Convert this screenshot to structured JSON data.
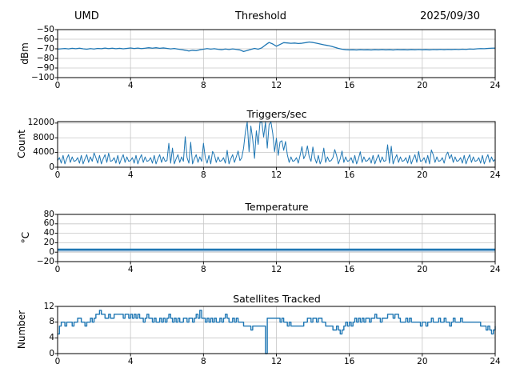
{
  "figure": {
    "background": "#ffffff",
    "accent_color": "#1f77b4",
    "grid_color": "#c6c6c6"
  },
  "header": {
    "station": "UMD",
    "date": "2025/09/30"
  },
  "chart_data": [
    {
      "type": "line",
      "title": "Threshold",
      "title_left": "UMD",
      "title_right": "2025/09/30",
      "ylabel": "dBm",
      "xlabel": "",
      "xlim": [
        0,
        24
      ],
      "ylim": [
        -100,
        -50
      ],
      "grid": true,
      "legend": "none",
      "xtick_values": [
        0,
        4,
        8,
        12,
        16,
        20,
        24
      ],
      "xtick_labels": [
        "0",
        "4",
        "8",
        "12",
        "16",
        "20",
        "24"
      ],
      "ytick_values": [
        -50,
        -60,
        -70,
        -80,
        -90,
        -100
      ],
      "ytick_labels": [
        "−50",
        "−60",
        "−70",
        "−80",
        "−90",
        "−100"
      ],
      "series": [
        {
          "name": "threshold_dbm",
          "color": "#1f77b4",
          "line_width": 1.3,
          "step": false,
          "x_start": 0,
          "x_step": 0.2,
          "values": [
            -70.3,
            -70.0,
            -69.7,
            -70.1,
            -69.5,
            -69.9,
            -69.4,
            -70.0,
            -70.4,
            -69.8,
            -70.2,
            -69.6,
            -69.9,
            -69.3,
            -69.8,
            -69.4,
            -69.9,
            -69.5,
            -70.0,
            -69.6,
            -69.2,
            -69.7,
            -69.3,
            -69.8,
            -69.4,
            -68.9,
            -69.4,
            -68.9,
            -69.5,
            -69.1,
            -69.6,
            -70.1,
            -69.7,
            -70.3,
            -70.8,
            -71.5,
            -72.3,
            -71.6,
            -72.0,
            -71.0,
            -70.4,
            -69.8,
            -70.3,
            -69.9,
            -70.5,
            -70.9,
            -70.2,
            -70.7,
            -70.1,
            -70.6,
            -71.2,
            -72.8,
            -71.8,
            -70.6,
            -69.6,
            -70.4,
            -69.0,
            -66.0,
            -63.4,
            -65.0,
            -67.3,
            -65.5,
            -63.6,
            -63.9,
            -64.3,
            -64.0,
            -64.5,
            -64.2,
            -63.6,
            -62.9,
            -63.4,
            -64.2,
            -65.0,
            -65.8,
            -66.5,
            -67.3,
            -68.4,
            -69.6,
            -70.4,
            -70.9,
            -71.1,
            -71.0,
            -71.2,
            -70.9,
            -71.1,
            -71.0,
            -71.2,
            -70.9,
            -71.1,
            -70.8,
            -71.1,
            -70.9,
            -71.2,
            -70.8,
            -71.0,
            -70.9,
            -71.1,
            -70.8,
            -71.0,
            -70.7,
            -71.0,
            -70.8,
            -71.1,
            -70.7,
            -70.9,
            -70.6,
            -70.9,
            -70.6,
            -70.8,
            -70.5,
            -70.7,
            -70.4,
            -70.6,
            -70.2,
            -70.4,
            -70.0,
            -69.8,
            -69.9,
            -69.6,
            -69.4,
            -69.3
          ]
        }
      ]
    },
    {
      "type": "line",
      "title": "Triggers/sec",
      "ylabel": "Count",
      "xlabel": "",
      "xlim": [
        0,
        24
      ],
      "ylim": [
        0,
        12400
      ],
      "grid": true,
      "legend": "none",
      "xtick_values": [
        0,
        4,
        8,
        12,
        16,
        20,
        24
      ],
      "xtick_labels": [
        "0",
        "4",
        "8",
        "12",
        "16",
        "20",
        "24"
      ],
      "ytick_values": [
        0,
        4000,
        8000,
        12000
      ],
      "ytick_labels": [
        "0",
        "4000",
        "8000",
        "12000"
      ],
      "series": [
        {
          "name": "triggers_per_sec",
          "color": "#1f77b4",
          "line_width": 1,
          "step": false,
          "x_start": 0,
          "x_step": 0.1,
          "values": [
            1800,
            2600,
            1100,
            3200,
            900,
            2300,
            3400,
            1300,
            2800,
            1600,
            1800,
            2600,
            1100,
            3200,
            900,
            2300,
            3400,
            1300,
            2800,
            1600,
            3900,
            2600,
            1100,
            3200,
            900,
            2300,
            3400,
            1300,
            3800,
            1600,
            1800,
            2600,
            1100,
            3200,
            900,
            2300,
            3400,
            1300,
            2800,
            1600,
            1800,
            2600,
            1100,
            3200,
            900,
            2300,
            3400,
            1300,
            2800,
            1600,
            1800,
            2600,
            1100,
            3200,
            900,
            2300,
            3400,
            1300,
            2800,
            1600,
            1800,
            6500,
            1100,
            5200,
            900,
            2300,
            3400,
            1300,
            2800,
            1600,
            8300,
            2600,
            1100,
            6800,
            900,
            2300,
            3400,
            1300,
            2800,
            1600,
            6500,
            2600,
            1100,
            3200,
            900,
            4300,
            3400,
            1300,
            2800,
            1600,
            1800,
            2600,
            1100,
            4600,
            900,
            2300,
            3400,
            1300,
            2800,
            4400,
            1800,
            2600,
            5200,
            9600,
            12300,
            4200,
            11200,
            7600,
            2400,
            9900,
            6200,
            12200,
            12300,
            8200,
            12250,
            5200,
            11600,
            12300,
            9200,
            4200,
            7900,
            3200,
            6900,
            7200,
            4600,
            7000,
            3400,
            1300,
            2800,
            1600,
            1800,
            2600,
            1100,
            3200,
            5600,
            2300,
            3400,
            5800,
            2800,
            1600,
            5500,
            2600,
            1100,
            3200,
            900,
            2300,
            5200,
            1300,
            2800,
            1600,
            1800,
            2600,
            4800,
            3200,
            900,
            2300,
            4400,
            1300,
            2800,
            1600,
            1800,
            2600,
            1100,
            3200,
            900,
            2300,
            4200,
            1300,
            2800,
            1600,
            1800,
            2600,
            1100,
            3200,
            900,
            2300,
            3400,
            1300,
            2800,
            1600,
            1800,
            6100,
            1100,
            5700,
            900,
            2300,
            3400,
            1300,
            2800,
            1600,
            1800,
            2600,
            1100,
            3200,
            900,
            2300,
            3400,
            1300,
            4300,
            1600,
            1800,
            2600,
            1100,
            3200,
            900,
            4700,
            3400,
            1300,
            2800,
            1600,
            1800,
            2600,
            1100,
            3200,
            4100,
            2300,
            3400,
            1300,
            2800,
            1600,
            1800,
            2600,
            1100,
            3200,
            900,
            2300,
            3400,
            1300,
            2800,
            1600,
            1800,
            2600,
            1100,
            3200,
            900,
            2300,
            3400,
            1300,
            2800,
            1600,
            2200
          ]
        }
      ]
    },
    {
      "type": "line",
      "title": "Temperature",
      "ylabel": "°C",
      "xlabel": "",
      "xlim": [
        0,
        24
      ],
      "ylim": [
        -20,
        80
      ],
      "grid": true,
      "legend": "none",
      "xtick_values": [
        0,
        4,
        8,
        12,
        16,
        20,
        24
      ],
      "xtick_labels": [
        "0",
        "4",
        "8",
        "12",
        "16",
        "20",
        "24"
      ],
      "ytick_values": [
        80,
        60,
        40,
        20,
        0,
        -20
      ],
      "ytick_labels": [
        "80",
        "60",
        "40",
        "20",
        "0",
        "−20"
      ],
      "series": [
        {
          "name": "temperature_secondary",
          "color": "#a9c6e0",
          "line_width": 2,
          "step": false,
          "x_start": 0,
          "x_step": 24,
          "values": [
            2.8,
            2.8
          ]
        },
        {
          "name": "temperature_main",
          "color": "#1f77b4",
          "line_width": 2.4,
          "step": false,
          "x_start": 0,
          "x_step": 24,
          "values": [
            5.5,
            5.5
          ]
        }
      ]
    },
    {
      "type": "step",
      "title": "Satellites Tracked",
      "ylabel": "Number",
      "xlabel": "",
      "xlim": [
        0,
        24
      ],
      "ylim": [
        0,
        12
      ],
      "grid": true,
      "legend": "none",
      "xtick_values": [
        0,
        4,
        8,
        12,
        16,
        20,
        24
      ],
      "xtick_labels": [
        "0",
        "4",
        "8",
        "12",
        "16",
        "20",
        "24"
      ],
      "ytick_values": [
        12,
        8,
        4,
        0
      ],
      "ytick_labels": [
        "12",
        "8",
        "4",
        "0"
      ],
      "series": [
        {
          "name": "satellites_tracked",
          "color": "#1f77b4",
          "line_width": 1.4,
          "step": true,
          "x_start": 0,
          "x_step": 0.1,
          "values": [
            5,
            7,
            8,
            8,
            7,
            8,
            8,
            8,
            7,
            8,
            8,
            9,
            9,
            8,
            8,
            7,
            8,
            8,
            9,
            8,
            9,
            10,
            10,
            11,
            10,
            10,
            9,
            9,
            10,
            9,
            9,
            10,
            10,
            10,
            10,
            10,
            9,
            10,
            10,
            9,
            10,
            9,
            10,
            9,
            10,
            9,
            9,
            8,
            9,
            10,
            9,
            9,
            8,
            9,
            8,
            8,
            9,
            8,
            9,
            8,
            9,
            10,
            9,
            8,
            9,
            8,
            9,
            8,
            8,
            9,
            9,
            8,
            9,
            9,
            8,
            9,
            10,
            9,
            11,
            9,
            9,
            8,
            9,
            8,
            9,
            8,
            9,
            8,
            8,
            9,
            8,
            9,
            10,
            9,
            8,
            8,
            9,
            8,
            9,
            8,
            8,
            8,
            7,
            7,
            7,
            7,
            6,
            7,
            7,
            7,
            7,
            7,
            7,
            7,
            0,
            9,
            9,
            9,
            9,
            9,
            9,
            9,
            8,
            9,
            8,
            8,
            7,
            8,
            7,
            7,
            7,
            7,
            7,
            7,
            7,
            8,
            8,
            9,
            9,
            8,
            9,
            9,
            8,
            9,
            9,
            8,
            8,
            7,
            7,
            7,
            7,
            6,
            6,
            7,
            6,
            5,
            6,
            7,
            8,
            7,
            8,
            7,
            8,
            9,
            8,
            9,
            8,
            9,
            8,
            9,
            9,
            8,
            9,
            9,
            10,
            9,
            9,
            8,
            9,
            9,
            9,
            10,
            10,
            10,
            9,
            10,
            10,
            9,
            8,
            8,
            8,
            9,
            8,
            9,
            8,
            8,
            8,
            8,
            8,
            7,
            8,
            8,
            7,
            8,
            8,
            9,
            8,
            8,
            8,
            9,
            8,
            8,
            9,
            8,
            8,
            7,
            8,
            9,
            8,
            8,
            8,
            9,
            8,
            8,
            8,
            8,
            8,
            8,
            8,
            8,
            8,
            8,
            7,
            7,
            7,
            6,
            7,
            6,
            5,
            6,
            7
          ]
        }
      ]
    }
  ]
}
